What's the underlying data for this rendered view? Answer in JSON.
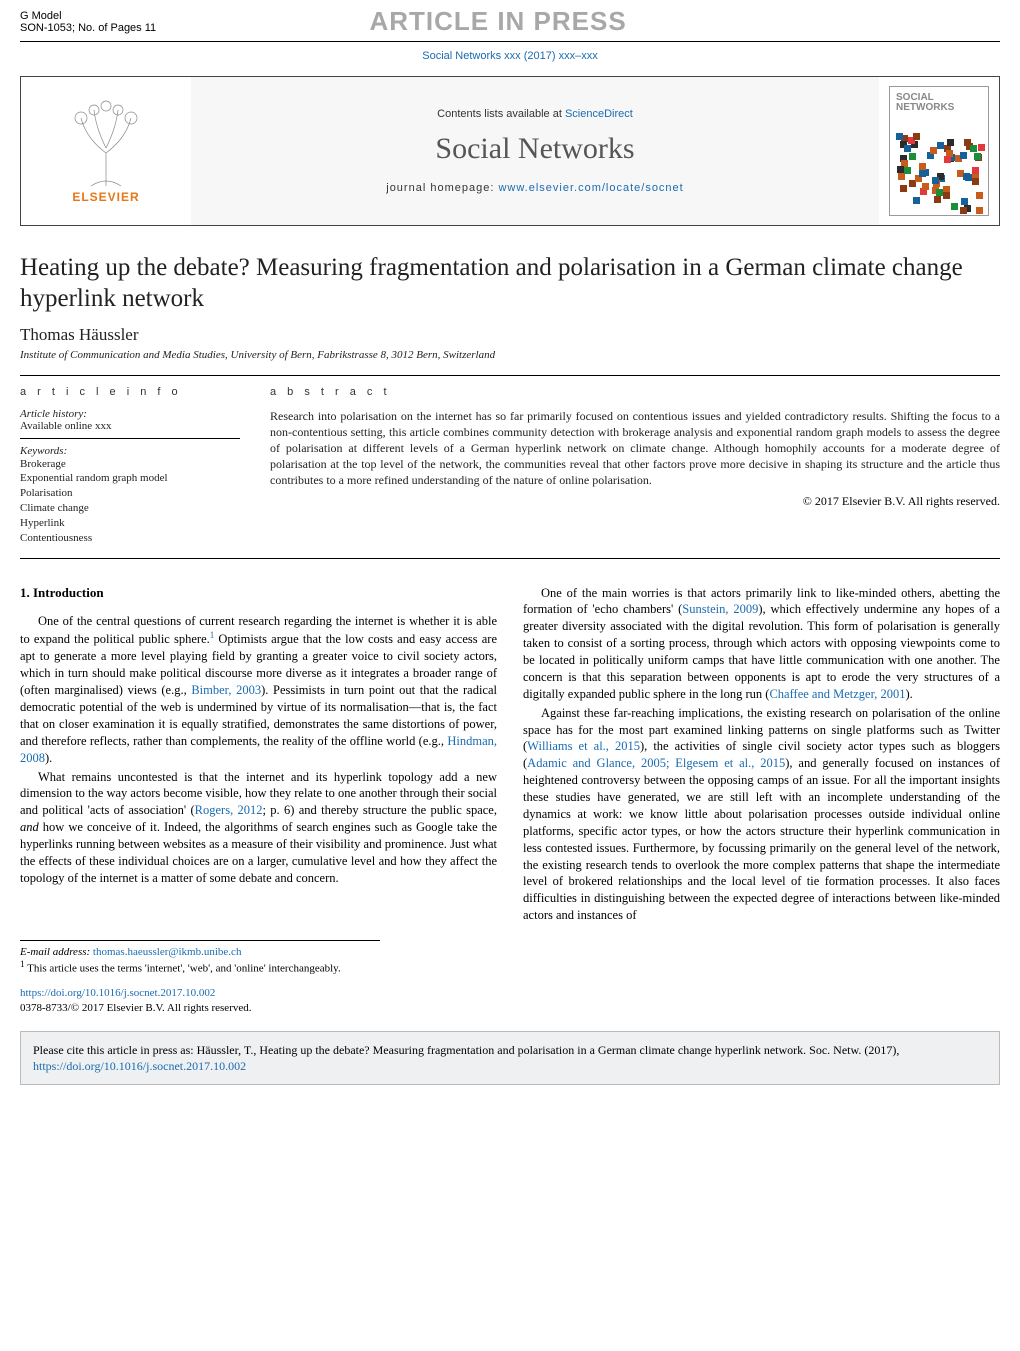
{
  "page": {
    "bg_color": "#ffffff",
    "link_color": "#1a6bb0",
    "text_color": "#222222",
    "accent_grey": "#a8a8a8"
  },
  "header": {
    "g_model": "G Model",
    "son_line": "SON-1053;   No. of Pages 11",
    "article_in_press": "ARTICLE IN PRESS",
    "journal_ref": "Social Networks xxx (2017) xxx–xxx"
  },
  "masthead": {
    "publisher_word": "ELSEVIER",
    "publisher_color": "#e67817",
    "contents_line_prefix": "Contents lists available at ",
    "contents_line_link": "ScienceDirect",
    "journal_title": "Social Networks",
    "homepage_prefix": "journal homepage: ",
    "homepage_url": "www.elsevier.com/locate/socnet",
    "cover_title": "SOCIAL\nNETWORKS",
    "cover_swatch_colors": [
      "#e4393c",
      "#1a8f3a",
      "#16619a",
      "#8a3b13",
      "#c65d1d",
      "#2b2b2b"
    ]
  },
  "article": {
    "title": "Heating up the debate? Measuring fragmentation and polarisation in a German climate change hyperlink network",
    "author": "Thomas Häussler",
    "affiliation": "Institute of Communication and Media Studies, University of Bern, Fabrikstrasse 8, 3012 Bern, Switzerland"
  },
  "info_block": {
    "heading": "a r t i c l e   i n f o",
    "history_label": "Article history:",
    "history_value": "Available online xxx",
    "keywords_label": "Keywords:",
    "keywords": [
      "Brokerage",
      "Exponential random graph model",
      "Polarisation",
      "Climate change",
      "Hyperlink",
      "Contentiousness"
    ]
  },
  "abstract_block": {
    "heading": "a b s t r a c t",
    "text": "Research into polarisation on the internet has so far primarily focused on contentious issues and yielded contradictory results. Shifting the focus to a non-contentious setting, this article combines community detection with brokerage analysis and exponential random graph models to assess the degree of polarisation at different levels of a German hyperlink network on climate change. Although homophily accounts for a moderate degree of polarisation at the top level of the network, the communities reveal that other factors prove more decisive in shaping its structure and the article thus contributes to a more refined understanding of the nature of online polarisation.",
    "copyright": "© 2017 Elsevier B.V. All rights reserved."
  },
  "body": {
    "section_heading": "1.  Introduction",
    "left_paras": [
      {
        "pre": "One of the central questions of current research regarding the internet is whether it is able to expand the political public sphere.",
        "sup": "1",
        "post": " Optimists argue that the low costs and easy access are apt to generate a more level playing field by granting a greater voice to civil society actors, which in turn should make political discourse more diverse as it integrates a broader range of (often marginalised) views (e.g., ",
        "link": "Bimber, 2003",
        "post2": "). Pessimists in turn point out that the radical democratic potential of the web is undermined by virtue of its normalisation—that is, the fact that on closer examination it is equally stratified, demonstrates the same distortions of power, and therefore reflects, rather than complements, the reality of the offline world (e.g., ",
        "link2": "Hindman, 2008",
        "post3": ")."
      },
      {
        "pre": "What remains uncontested is that the internet and its hyperlink topology add a new dimension to the way actors become visible, how they relate to one another through their social and political 'acts of association' (",
        "link": "Rogers, 2012",
        "post": "; p. 6) and thereby structure the public space, ",
        "em": "and",
        "post2": " how we conceive of it. Indeed, the algorithms of search engines such as Google take the hyperlinks running between websites as a measure of their visibility and prominence. Just what the effects of these individual choices are on a larger, cumulative level and how they affect the topology of the internet is a matter of some debate and concern."
      }
    ],
    "right_paras": [
      {
        "pre": "One of the main worries is that actors primarily link to like-minded others, abetting the formation of 'echo chambers' (",
        "link": "Sunstein, 2009",
        "post": "), which effectively undermine any hopes of a greater diversity associated with the digital revolution. This form of polarisation is generally taken to consist of a sorting process, through which actors with opposing viewpoints come to be located in politically uniform camps that have little communication with one another. The concern is that this separation between opponents is apt to erode the very structures of a digitally expanded public sphere in the long run (",
        "link2": "Chaffee and Metzger, 2001",
        "post2": ")."
      },
      {
        "pre": "Against these far-reaching implications, the existing research on polarisation of the online space has for the most part examined linking patterns on single platforms such as Twitter (",
        "link": "Williams et al., 2015",
        "post": "), the activities of single civil society actor types such as bloggers (",
        "link2": "Adamic and Glance, 2005; Elgesem et al., 2015",
        "post2": "), and generally focused on instances of heightened controversy between the opposing camps of an issue. For all the important insights these studies have generated, we are still left with an incomplete understanding of the dynamics at work: we know little about polarisation processes outside individual online platforms, specific actor types, or how the actors structure their hyperlink communication in less contested issues. Furthermore, by focussing primarily on the general level of the network, the existing research tends to overlook the more complex patterns that shape the intermediate level of brokered relationships and the local level of tie formation processes. It also faces difficulties in distinguishing between the expected degree of interactions between like-minded actors and instances of"
      }
    ]
  },
  "footnotes": {
    "email_label": "E-mail address: ",
    "email": "thomas.haeussler@ikmb.unibe.ch",
    "note1_marker": "1",
    "note1_text": " This article uses the terms 'internet', 'web', and 'online' interchangeably."
  },
  "doi": {
    "url": "https://doi.org/10.1016/j.socnet.2017.10.002",
    "issn_line": "0378-8733/© 2017 Elsevier B.V. All rights reserved."
  },
  "cite_box": {
    "text_prefix": "Please cite this article in press as: Häussler, T., Heating up the debate? Measuring fragmentation and polarisation in a German climate change hyperlink network. Soc. Netw. (2017), ",
    "link": "https://doi.org/10.1016/j.socnet.2017.10.002"
  }
}
